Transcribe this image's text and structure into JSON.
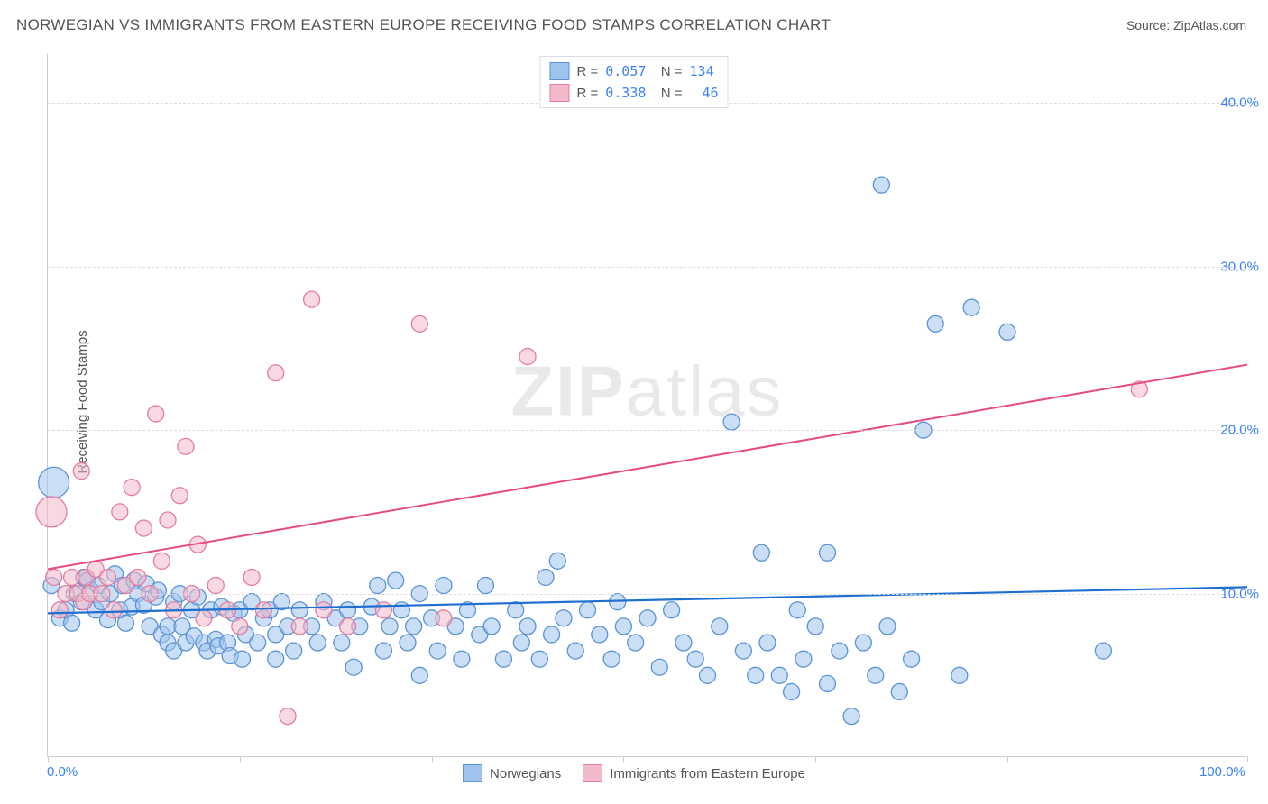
{
  "title": "NORWEGIAN VS IMMIGRANTS FROM EASTERN EUROPE RECEIVING FOOD STAMPS CORRELATION CHART",
  "source_label": "Source: ",
  "source_name": "ZipAtlas.com",
  "y_axis_label": "Receiving Food Stamps",
  "watermark_prefix": "ZIP",
  "watermark_suffix": "atlas",
  "chart": {
    "type": "scatter",
    "xlim": [
      0,
      100
    ],
    "ylim": [
      0,
      43
    ],
    "x_tick_positions": [
      0,
      16,
      32,
      48,
      64,
      80,
      100
    ],
    "x_tick_labels": {
      "0": "0.0%",
      "100": "100.0%"
    },
    "y_gridlines": [
      10,
      20,
      30,
      40
    ],
    "y_tick_labels": {
      "10": "10.0%",
      "20": "20.0%",
      "30": "30.0%",
      "40": "40.0%"
    },
    "background_color": "#ffffff",
    "grid_color": "#dddddd",
    "axis_color": "#cccccc",
    "tick_label_color": "#3b82f6",
    "text_color": "#555555",
    "point_radius": 9,
    "point_radius_large": 17,
    "point_opacity": 0.55,
    "series": [
      {
        "name": "Norwegians",
        "fill_color": "#9ec4ed",
        "stroke_color": "#5a93d6",
        "trend_color": "#1f6fd1",
        "trend_width": 2.2,
        "R": "0.057",
        "N": "134",
        "trend": {
          "x1": 0,
          "y1": 8.8,
          "x2": 100,
          "y2": 10.4
        },
        "points": [
          [
            0.5,
            16.8,
            17
          ],
          [
            0.3,
            10.5,
            9
          ],
          [
            1.0,
            8.5,
            9
          ],
          [
            1.5,
            9.0,
            9
          ],
          [
            2.0,
            8.2,
            9
          ],
          [
            2.2,
            10.0,
            9
          ],
          [
            2.8,
            9.5,
            9
          ],
          [
            3.0,
            11.0,
            9
          ],
          [
            3.3,
            10.8,
            9
          ],
          [
            3.6,
            10.2,
            9
          ],
          [
            4.0,
            9.0,
            9
          ],
          [
            4.2,
            10.5,
            9
          ],
          [
            4.5,
            9.5,
            9
          ],
          [
            5.0,
            8.4,
            9
          ],
          [
            5.2,
            10.0,
            9
          ],
          [
            5.6,
            11.2,
            9
          ],
          [
            6.0,
            9.0,
            9
          ],
          [
            6.2,
            10.5,
            9
          ],
          [
            6.5,
            8.2,
            9
          ],
          [
            7.0,
            9.2,
            9
          ],
          [
            7.2,
            10.8,
            9
          ],
          [
            7.5,
            10.0,
            9
          ],
          [
            8.0,
            9.3,
            9
          ],
          [
            8.2,
            10.6,
            9
          ],
          [
            8.5,
            8.0,
            9
          ],
          [
            9.0,
            9.8,
            9
          ],
          [
            9.2,
            10.2,
            9
          ],
          [
            9.5,
            7.5,
            9
          ],
          [
            10.0,
            8.0,
            9
          ],
          [
            10.0,
            7.0,
            9
          ],
          [
            10.5,
            9.5,
            9
          ],
          [
            10.5,
            6.5,
            9
          ],
          [
            11.0,
            10.0,
            9
          ],
          [
            11.2,
            8.0,
            9
          ],
          [
            11.5,
            7.0,
            9
          ],
          [
            12.0,
            9.0,
            9
          ],
          [
            12.2,
            7.4,
            9
          ],
          [
            12.5,
            9.8,
            9
          ],
          [
            13.0,
            7.0,
            9
          ],
          [
            13.3,
            6.5,
            9
          ],
          [
            13.6,
            9.0,
            9
          ],
          [
            14.0,
            7.2,
            9
          ],
          [
            14.2,
            6.8,
            9
          ],
          [
            14.5,
            9.2,
            9
          ],
          [
            15.0,
            7.0,
            9
          ],
          [
            15.2,
            6.2,
            9
          ],
          [
            15.5,
            8.8,
            9
          ],
          [
            16.0,
            9.0,
            9
          ],
          [
            16.2,
            6.0,
            9
          ],
          [
            16.5,
            7.5,
            9
          ],
          [
            17.0,
            9.5,
            9
          ],
          [
            17.5,
            7.0,
            9
          ],
          [
            18.0,
            8.5,
            9
          ],
          [
            18.5,
            9.0,
            9
          ],
          [
            19.0,
            7.5,
            9
          ],
          [
            19.0,
            6.0,
            9
          ],
          [
            19.5,
            9.5,
            9
          ],
          [
            20.0,
            8.0,
            9
          ],
          [
            20.5,
            6.5,
            9
          ],
          [
            21.0,
            9.0,
            9
          ],
          [
            22.0,
            8.0,
            9
          ],
          [
            22.5,
            7.0,
            9
          ],
          [
            23.0,
            9.5,
            9
          ],
          [
            24.0,
            8.5,
            9
          ],
          [
            24.5,
            7.0,
            9
          ],
          [
            25.0,
            9.0,
            9
          ],
          [
            25.5,
            5.5,
            9
          ],
          [
            26.0,
            8.0,
            9
          ],
          [
            27.0,
            9.2,
            9
          ],
          [
            27.5,
            10.5,
            9
          ],
          [
            28.0,
            6.5,
            9
          ],
          [
            28.5,
            8.0,
            9
          ],
          [
            29.0,
            10.8,
            9
          ],
          [
            29.5,
            9.0,
            9
          ],
          [
            30.0,
            7.0,
            9
          ],
          [
            30.5,
            8.0,
            9
          ],
          [
            31.0,
            10.0,
            9
          ],
          [
            31.0,
            5.0,
            9
          ],
          [
            32.0,
            8.5,
            9
          ],
          [
            32.5,
            6.5,
            9
          ],
          [
            33.0,
            10.5,
            9
          ],
          [
            34.0,
            8.0,
            9
          ],
          [
            34.5,
            6.0,
            9
          ],
          [
            35.0,
            9.0,
            9
          ],
          [
            36.0,
            7.5,
            9
          ],
          [
            36.5,
            10.5,
            9
          ],
          [
            37.0,
            8.0,
            9
          ],
          [
            38.0,
            6.0,
            9
          ],
          [
            39.0,
            9.0,
            9
          ],
          [
            39.5,
            7.0,
            9
          ],
          [
            40.0,
            8.0,
            9
          ],
          [
            41.0,
            6.0,
            9
          ],
          [
            41.5,
            11.0,
            9
          ],
          [
            42.0,
            7.5,
            9
          ],
          [
            42.5,
            12.0,
            9
          ],
          [
            43.0,
            8.5,
            9
          ],
          [
            44.0,
            6.5,
            9
          ],
          [
            45.0,
            9.0,
            9
          ],
          [
            46.0,
            7.5,
            9
          ],
          [
            47.0,
            6.0,
            9
          ],
          [
            47.5,
            9.5,
            9
          ],
          [
            48.0,
            8.0,
            9
          ],
          [
            49.0,
            7.0,
            9
          ],
          [
            50.0,
            8.5,
            9
          ],
          [
            51.0,
            5.5,
            9
          ],
          [
            52.0,
            9.0,
            9
          ],
          [
            53.0,
            7.0,
            9
          ],
          [
            54.0,
            6.0,
            9
          ],
          [
            55.0,
            5.0,
            9
          ],
          [
            56.0,
            8.0,
            9
          ],
          [
            57.0,
            20.5,
            9
          ],
          [
            58.0,
            6.5,
            9
          ],
          [
            59.0,
            5.0,
            9
          ],
          [
            59.5,
            12.5,
            9
          ],
          [
            60.0,
            7.0,
            9
          ],
          [
            61.0,
            5.0,
            9
          ],
          [
            62.0,
            4.0,
            9
          ],
          [
            62.5,
            9.0,
            9
          ],
          [
            63.0,
            6.0,
            9
          ],
          [
            64.0,
            8.0,
            9
          ],
          [
            65.0,
            4.5,
            9
          ],
          [
            65.0,
            12.5,
            9
          ],
          [
            66.0,
            6.5,
            9
          ],
          [
            67.0,
            2.5,
            9
          ],
          [
            68.0,
            7.0,
            9
          ],
          [
            69.0,
            5.0,
            9
          ],
          [
            69.5,
            35.0,
            9
          ],
          [
            70.0,
            8.0,
            9
          ],
          [
            71.0,
            4.0,
            9
          ],
          [
            72.0,
            6.0,
            9
          ],
          [
            73.0,
            20.0,
            9
          ],
          [
            74.0,
            26.5,
            9
          ],
          [
            76.0,
            5.0,
            9
          ],
          [
            77.0,
            27.5,
            9
          ],
          [
            80.0,
            26.0,
            9
          ],
          [
            88.0,
            6.5,
            9
          ]
        ]
      },
      {
        "name": "Immigrants from Eastern Europe",
        "fill_color": "#f4b9c8",
        "stroke_color": "#e57ca0",
        "trend_color": "#e64b82",
        "trend_width": 2.0,
        "R": "0.338",
        "N": "46",
        "trend": {
          "x1": 0,
          "y1": 11.5,
          "x2": 100,
          "y2": 24.0
        },
        "points": [
          [
            0.3,
            15.0,
            17
          ],
          [
            0.5,
            11.0,
            9
          ],
          [
            1.0,
            9.0,
            9
          ],
          [
            1.5,
            10.0,
            9
          ],
          [
            2.0,
            11.0,
            9
          ],
          [
            2.5,
            10.0,
            9
          ],
          [
            2.8,
            17.5,
            9
          ],
          [
            3.0,
            9.5,
            9
          ],
          [
            3.2,
            11.0,
            9
          ],
          [
            3.5,
            10.0,
            9
          ],
          [
            4.0,
            11.5,
            9
          ],
          [
            4.5,
            10.0,
            9
          ],
          [
            5.0,
            11.0,
            9
          ],
          [
            5.5,
            9.0,
            9
          ],
          [
            6.0,
            15.0,
            9
          ],
          [
            6.5,
            10.5,
            9
          ],
          [
            7.0,
            16.5,
            9
          ],
          [
            7.5,
            11.0,
            9
          ],
          [
            8.0,
            14.0,
            9
          ],
          [
            8.5,
            10.0,
            9
          ],
          [
            9.0,
            21.0,
            9
          ],
          [
            9.5,
            12.0,
            9
          ],
          [
            10.0,
            14.5,
            9
          ],
          [
            10.5,
            9.0,
            9
          ],
          [
            11.0,
            16.0,
            9
          ],
          [
            11.5,
            19.0,
            9
          ],
          [
            12.0,
            10.0,
            9
          ],
          [
            12.5,
            13.0,
            9
          ],
          [
            13.0,
            8.5,
            9
          ],
          [
            14.0,
            10.5,
            9
          ],
          [
            15.0,
            9.0,
            9
          ],
          [
            16.0,
            8.0,
            9
          ],
          [
            17.0,
            11.0,
            9
          ],
          [
            18.0,
            9.0,
            9
          ],
          [
            19.0,
            23.5,
            9
          ],
          [
            20.0,
            2.5,
            9
          ],
          [
            21.0,
            8.0,
            9
          ],
          [
            22.0,
            28.0,
            9
          ],
          [
            23.0,
            9.0,
            9
          ],
          [
            25.0,
            8.0,
            9
          ],
          [
            28.0,
            9.0,
            9
          ],
          [
            31.0,
            26.5,
            9
          ],
          [
            33.0,
            8.5,
            9
          ],
          [
            40.0,
            24.5,
            9
          ],
          [
            91.0,
            22.5,
            9
          ]
        ]
      }
    ]
  },
  "legend": {
    "bottom": [
      {
        "swatch_fill": "#9ec4ed",
        "swatch_stroke": "#5a93d6",
        "label": "Norwegians"
      },
      {
        "swatch_fill": "#f4b9c8",
        "swatch_stroke": "#e57ca0",
        "label": "Immigrants from Eastern Europe"
      }
    ]
  }
}
